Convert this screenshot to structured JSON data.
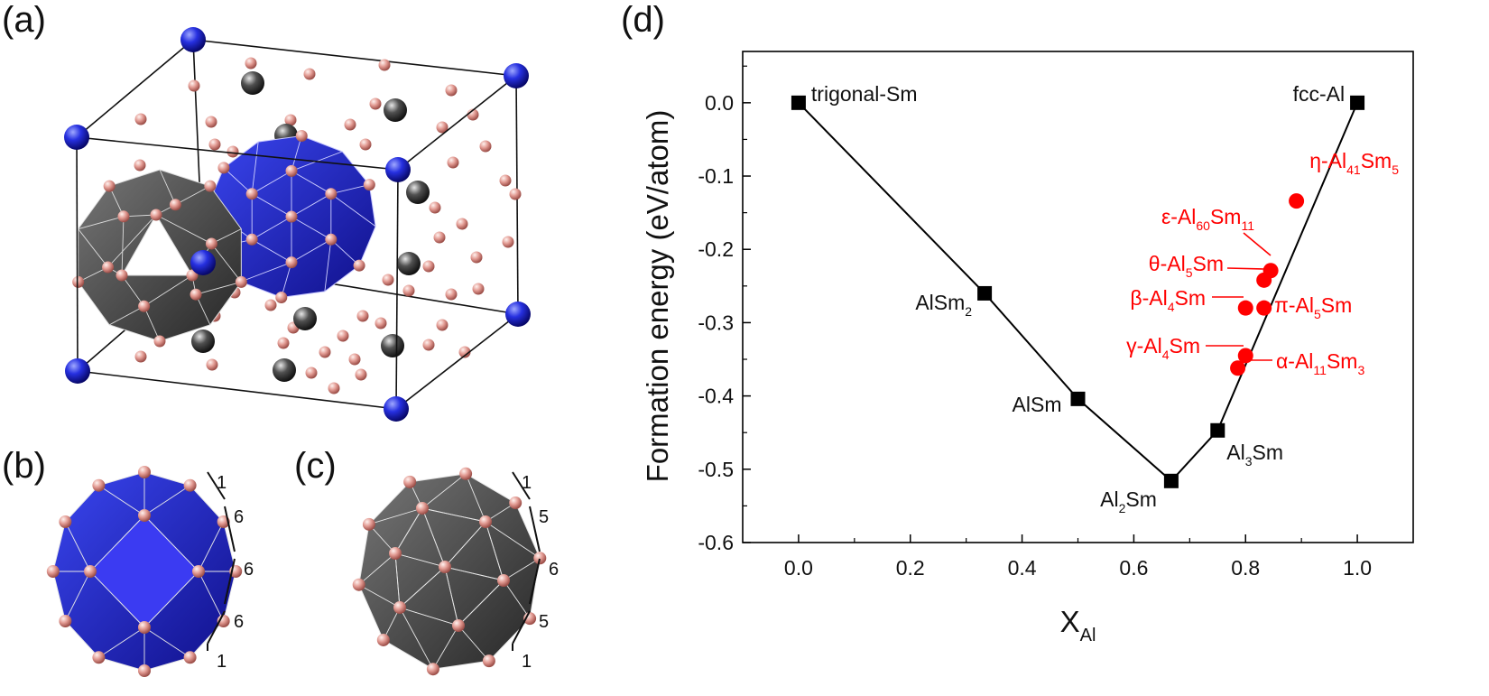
{
  "panels": {
    "a": "(a)",
    "b": "(b)",
    "c": "(c)",
    "d": "(d)"
  },
  "cluster_b_numbers": [
    "1",
    "6",
    "6",
    "6",
    "1"
  ],
  "cluster_c_numbers": [
    "1",
    "5",
    "6",
    "5",
    "1"
  ],
  "colors": {
    "sm_site_blue": "#1a1ad6",
    "sm_site_gray": "#4a4a4a",
    "al_atom": "#e0a09a",
    "stable": "#000000",
    "metastable": "#ff0000"
  },
  "chart_data": {
    "type": "scatter",
    "ylabel": "Formation energy (eV/atom)",
    "xlabel": {
      "main": "X",
      "sub": "Al"
    },
    "xlim": [
      -0.1,
      1.1
    ],
    "ylim": [
      -0.6,
      0.07
    ],
    "xticks": [
      0.0,
      0.2,
      0.4,
      0.6,
      0.8,
      1.0
    ],
    "yticks": [
      0.0,
      -0.1,
      -0.2,
      -0.3,
      -0.4,
      -0.5,
      -0.6
    ],
    "x_tick_labels": [
      "0.0",
      "0.2",
      "0.4",
      "0.6",
      "0.8",
      "1.0"
    ],
    "y_tick_labels": [
      "0.0",
      "-0.1",
      "-0.2",
      "-0.3",
      "-0.4",
      "-0.5",
      "-0.6"
    ],
    "hull_line": {
      "x": [
        0.0,
        0.333,
        0.5,
        0.667,
        0.75,
        1.0
      ],
      "y": [
        0.0,
        -0.26,
        -0.404,
        -0.516,
        -0.447,
        0.0
      ]
    },
    "stable_phases": [
      {
        "x": 0.0,
        "y": 0.0,
        "label": [
          {
            "t": "trigonal-Sm"
          }
        ]
      },
      {
        "x": 0.333,
        "y": -0.26,
        "label": [
          {
            "t": "AlSm"
          },
          {
            "t": "2",
            "sub": true
          }
        ]
      },
      {
        "x": 0.5,
        "y": -0.404,
        "label": [
          {
            "t": "AlSm"
          }
        ]
      },
      {
        "x": 0.667,
        "y": -0.516,
        "label": [
          {
            "t": "Al"
          },
          {
            "t": "2",
            "sub": true
          },
          {
            "t": "Sm"
          }
        ]
      },
      {
        "x": 0.75,
        "y": -0.447,
        "label": [
          {
            "t": "Al"
          },
          {
            "t": "3",
            "sub": true
          },
          {
            "t": "Sm"
          }
        ]
      },
      {
        "x": 1.0,
        "y": 0.0,
        "label": [
          {
            "t": "fcc-Al"
          }
        ]
      }
    ],
    "metastable_phases": [
      {
        "x": 0.891,
        "y": -0.134,
        "label": [
          {
            "t": "η-Al"
          },
          {
            "t": "41",
            "sub": true
          },
          {
            "t": "Sm"
          },
          {
            "t": "5",
            "sub": true
          }
        ]
      },
      {
        "x": 0.845,
        "y": -0.229,
        "label": [
          {
            "t": "ε-Al"
          },
          {
            "t": "60",
            "sub": true
          },
          {
            "t": "Sm"
          },
          {
            "t": "11",
            "sub": true
          }
        ]
      },
      {
        "x": 0.833,
        "y": -0.242,
        "label": [
          {
            "t": "θ-Al"
          },
          {
            "t": "5",
            "sub": true
          },
          {
            "t": "Sm"
          }
        ]
      },
      {
        "x": 0.8,
        "y": -0.28,
        "label": [
          {
            "t": "β-Al"
          },
          {
            "t": "4",
            "sub": true
          },
          {
            "t": "Sm"
          }
        ]
      },
      {
        "x": 0.833,
        "y": -0.28,
        "label": [
          {
            "t": "π-Al"
          },
          {
            "t": "5",
            "sub": true
          },
          {
            "t": "Sm"
          }
        ]
      },
      {
        "x": 0.8,
        "y": -0.345,
        "label": [
          {
            "t": "γ-Al"
          },
          {
            "t": "4",
            "sub": true
          },
          {
            "t": "Sm"
          }
        ]
      },
      {
        "x": 0.786,
        "y": -0.362,
        "label": [
          {
            "t": "α-Al"
          },
          {
            "t": "11",
            "sub": true
          },
          {
            "t": "Sm"
          },
          {
            "t": "3",
            "sub": true
          }
        ]
      }
    ]
  }
}
